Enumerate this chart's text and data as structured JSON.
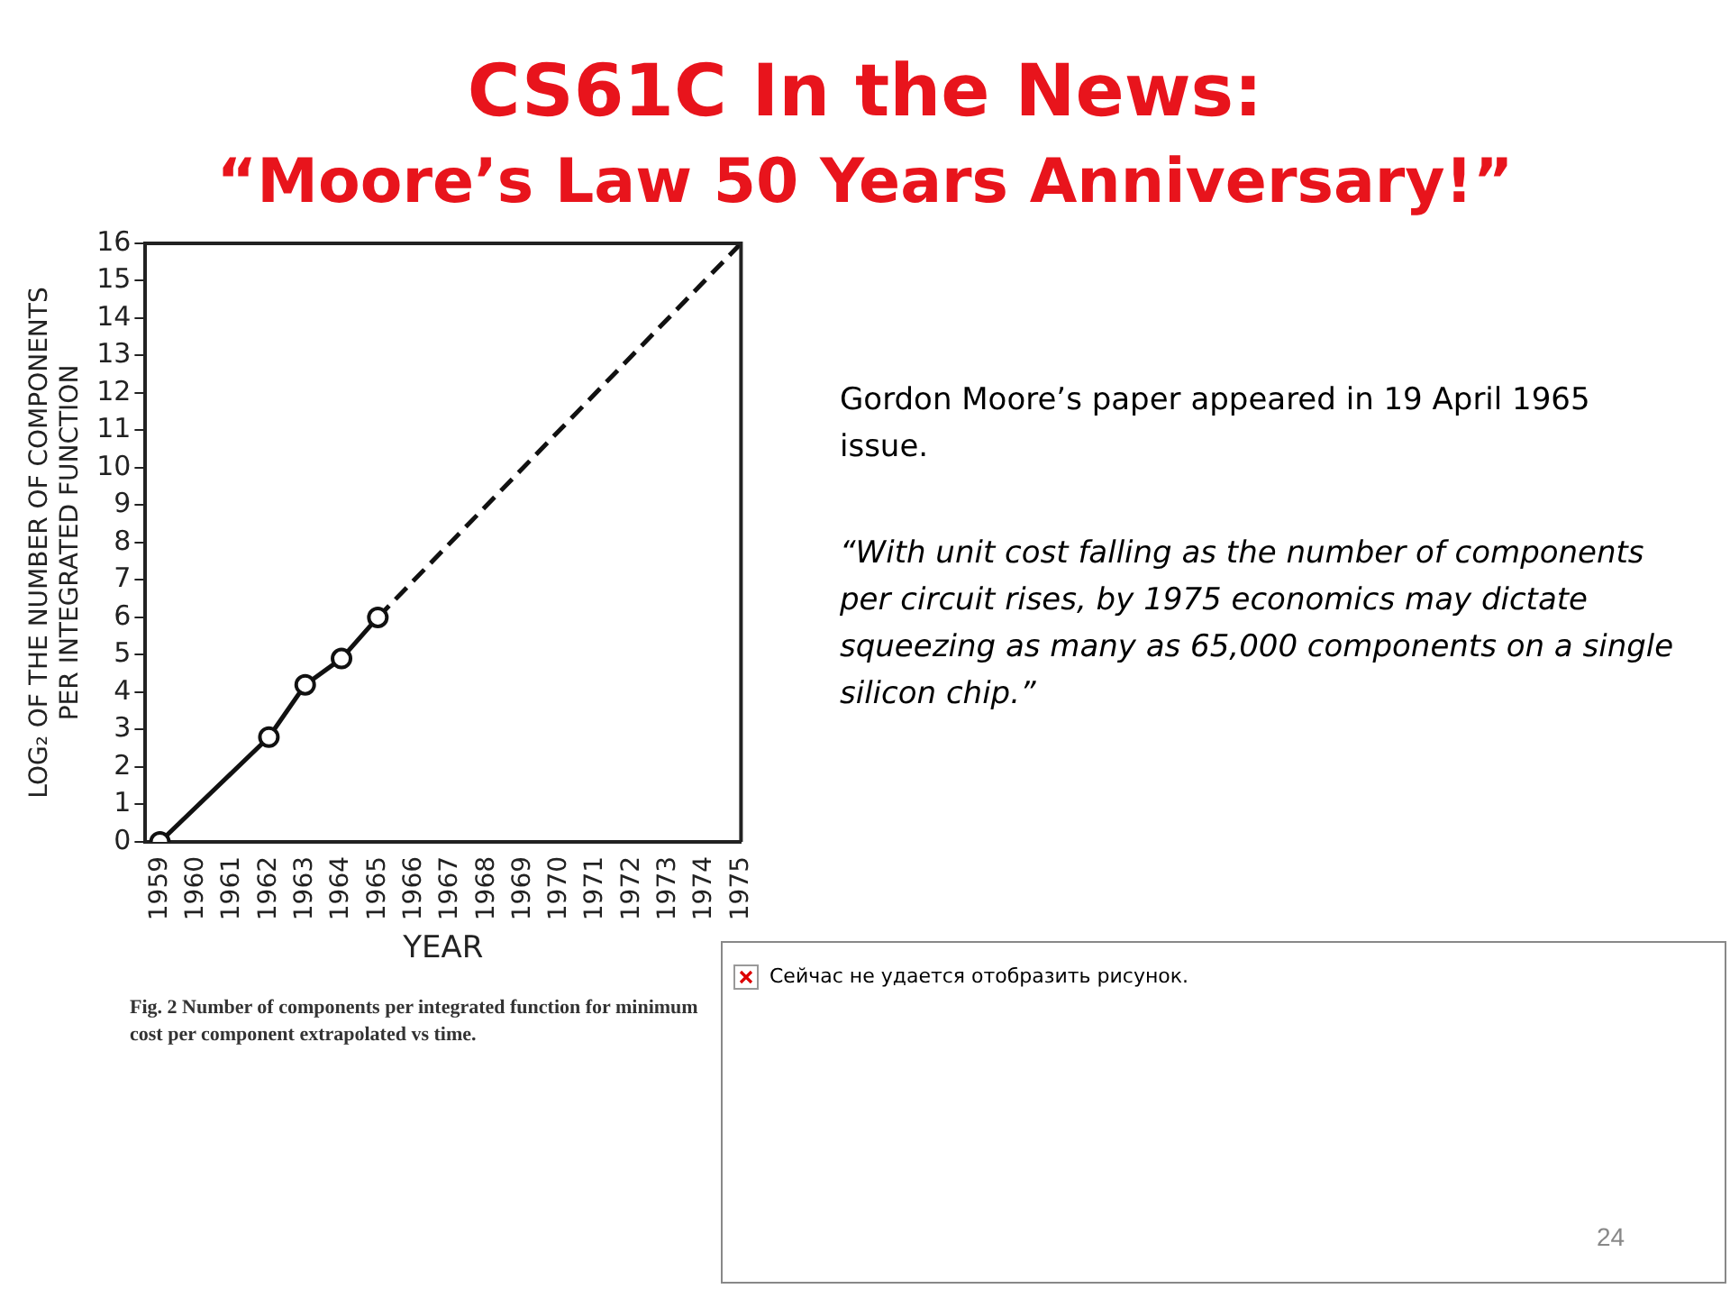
{
  "chart_data": {
    "type": "line",
    "title": "CS61C In the News:",
    "subtitle": "“Moore’s  Law 50 Years Anniversary!”",
    "xlabel": "YEAR",
    "ylabel": "LOG₂ OF THE NUMBER OF COMPONENTS PER INTEGRATED FUNCTION",
    "xlim": [
      1958.6,
      1975
    ],
    "xticks": [
      1959,
      1960,
      1961,
      1962,
      1963,
      1964,
      1965,
      1966,
      1967,
      1968,
      1969,
      1970,
      1971,
      1972,
      1973,
      1974,
      1975
    ],
    "ylim": [
      0,
      16
    ],
    "yticks": [
      0,
      1,
      2,
      3,
      4,
      5,
      6,
      7,
      8,
      9,
      10,
      11,
      12,
      13,
      14,
      15,
      16
    ],
    "series": [
      {
        "color": "#111111",
        "x": [
          1959,
          1962,
          1963,
          1964,
          1965
        ],
        "values": [
          0,
          2.8,
          4.2,
          4.9,
          6
        ],
        "marker": "circle",
        "line_style": "solid"
      },
      {
        "color": "#111111",
        "x": [
          1965,
          1975
        ],
        "values": [
          6,
          16
        ],
        "marker": "none",
        "line_style": "dashed"
      }
    ],
    "grid": false,
    "legend": false,
    "annotations": [
      "Fig. 2    Number of components per integrated function for minimum cost per component extrapolated vs time.",
      "Gordon Moore’s paper appeared in 19 April 1965 issue.",
      "“With unit cost falling as the number of components per circuit rises, by 1975 economics may dictate squeezing as many as 65,000 components on a single silicon chip.”",
      "Сейчас не удается отобразить рисунок.",
      "24"
    ]
  }
}
